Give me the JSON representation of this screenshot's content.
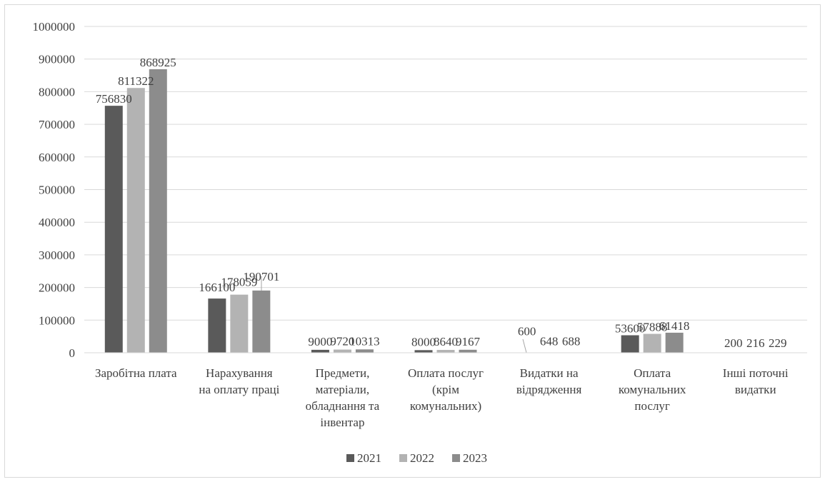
{
  "chart_data": {
    "type": "bar",
    "categories": [
      [
        "Заробітна плата"
      ],
      [
        "Нарахування",
        "на оплату праці"
      ],
      [
        "Предмети,",
        "матеріали,",
        "обладнання та",
        "інвентар"
      ],
      [
        "Оплата послуг",
        "(крім",
        "комунальних)"
      ],
      [
        "Видатки на",
        "відрядження"
      ],
      [
        "Оплата",
        "комунальних",
        "послуг"
      ],
      [
        "Інші поточні",
        "видатки"
      ]
    ],
    "series": [
      {
        "name": "2021",
        "color": "#5a5a5a",
        "values": [
          756830,
          166100,
          9000,
          8000,
          600,
          53600,
          200
        ]
      },
      {
        "name": "2022",
        "color": "#b3b3b3",
        "values": [
          811322,
          178059,
          9720,
          8640,
          648,
          57888,
          216
        ]
      },
      {
        "name": "2023",
        "color": "#8c8c8c",
        "values": [
          868925,
          190701,
          10313,
          9167,
          688,
          61418,
          229
        ]
      }
    ],
    "ylim": [
      0,
      1000000
    ],
    "yticks": [
      "0",
      "100000",
      "200000",
      "300000",
      "400000",
      "500000",
      "600000",
      "700000",
      "800000",
      "900000",
      "1000000"
    ],
    "grid": true,
    "legend": "bottom"
  }
}
